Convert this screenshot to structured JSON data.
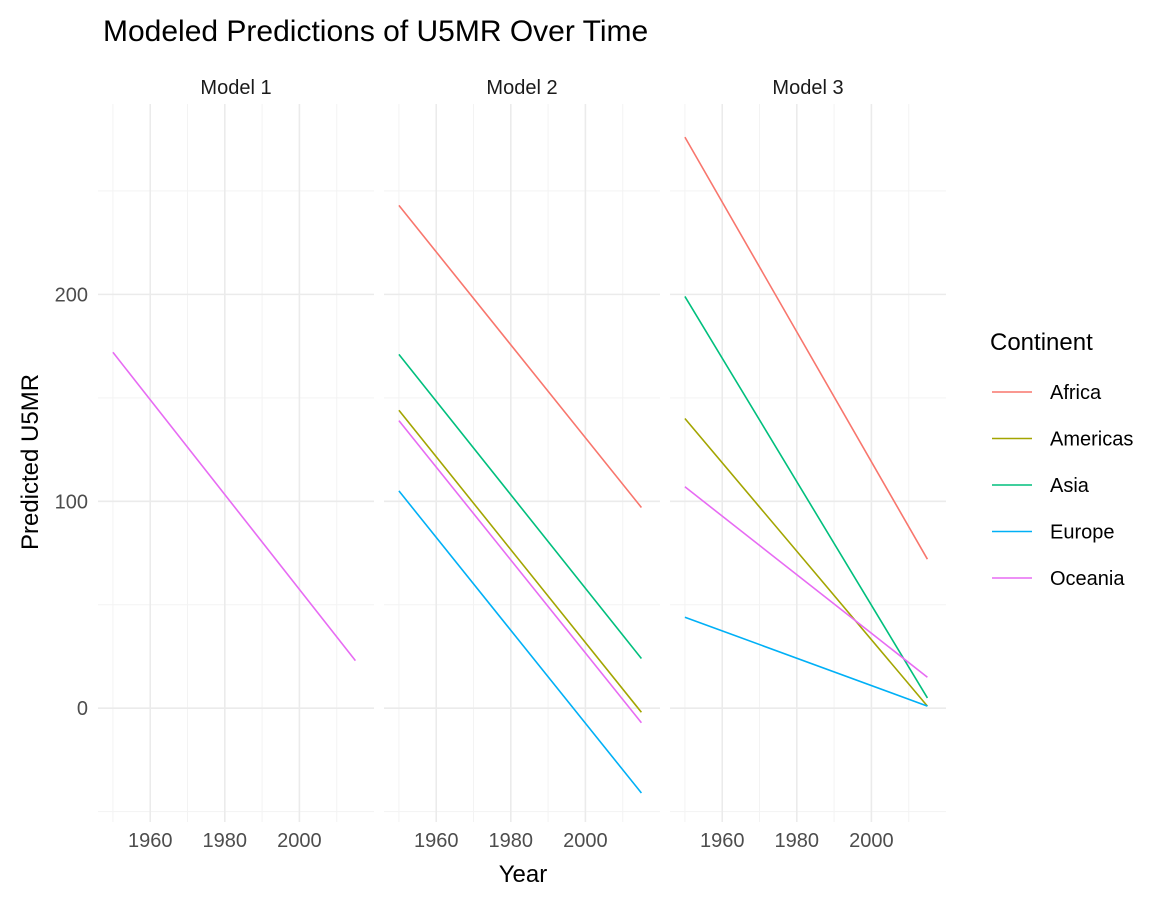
{
  "chart_data": {
    "type": "line",
    "title": "Modeled Predictions of U5MR Over Time",
    "xlabel": "Year",
    "ylabel": "Predicted U5MR",
    "xlim": [
      1946,
      2020
    ],
    "ylim": [
      -55,
      292
    ],
    "x_ticks": [
      1960,
      1980,
      2000
    ],
    "y_ticks": [
      0,
      100,
      200
    ],
    "grid": true,
    "legend": {
      "title": "Continent",
      "position": "right",
      "entries": [
        {
          "name": "Africa",
          "color": "#F8766D"
        },
        {
          "name": "Americas",
          "color": "#A3A500"
        },
        {
          "name": "Asia",
          "color": "#00BF7D"
        },
        {
          "name": "Europe",
          "color": "#00B0F6"
        },
        {
          "name": "Oceania",
          "color": "#E76BF3"
        }
      ]
    },
    "panels": [
      {
        "title": "Model 1",
        "series": [
          {
            "name": "Oceania",
            "color": "#E76BF3",
            "x": [
              1950,
              2015
            ],
            "y": [
              172,
              23
            ]
          }
        ]
      },
      {
        "title": "Model 2",
        "series": [
          {
            "name": "Africa",
            "color": "#F8766D",
            "x": [
              1950,
              2015
            ],
            "y": [
              243,
              97
            ]
          },
          {
            "name": "Americas",
            "color": "#A3A500",
            "x": [
              1950,
              2015
            ],
            "y": [
              144,
              -2
            ]
          },
          {
            "name": "Asia",
            "color": "#00BF7D",
            "x": [
              1950,
              2015
            ],
            "y": [
              171,
              24
            ]
          },
          {
            "name": "Europe",
            "color": "#00B0F6",
            "x": [
              1950,
              2015
            ],
            "y": [
              105,
              -41
            ]
          },
          {
            "name": "Oceania",
            "color": "#E76BF3",
            "x": [
              1950,
              2015
            ],
            "y": [
              139,
              -7
            ]
          }
        ]
      },
      {
        "title": "Model 3",
        "series": [
          {
            "name": "Africa",
            "color": "#F8766D",
            "x": [
              1950,
              2015
            ],
            "y": [
              276,
              72
            ]
          },
          {
            "name": "Americas",
            "color": "#A3A500",
            "x": [
              1950,
              2015
            ],
            "y": [
              140,
              1
            ]
          },
          {
            "name": "Asia",
            "color": "#00BF7D",
            "x": [
              1950,
              2015
            ],
            "y": [
              199,
              5
            ]
          },
          {
            "name": "Europe",
            "color": "#00B0F6",
            "x": [
              1950,
              2015
            ],
            "y": [
              44,
              1
            ]
          },
          {
            "name": "Oceania",
            "color": "#E76BF3",
            "x": [
              1950,
              2015
            ],
            "y": [
              107,
              15
            ]
          }
        ]
      }
    ]
  }
}
